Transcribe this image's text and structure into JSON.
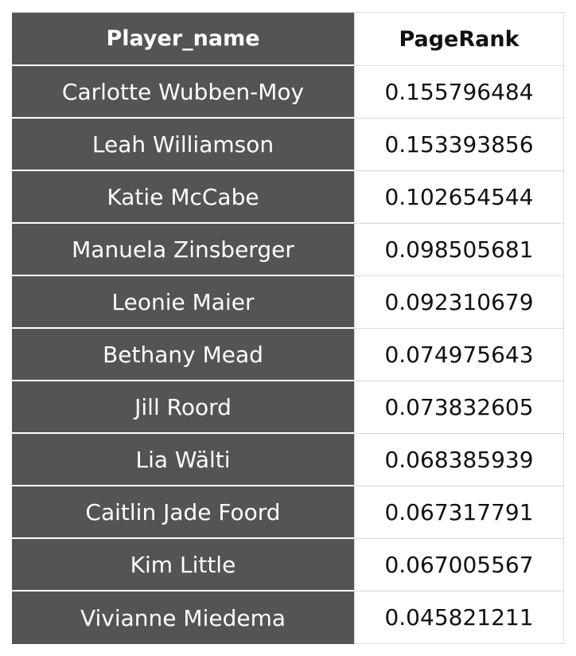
{
  "table": {
    "headers": [
      "Player_name",
      "PageRank"
    ],
    "rows": [
      [
        "Carlotte Wubben-Moy",
        "0.155796484"
      ],
      [
        "Leah Williamson",
        "0.153393856"
      ],
      [
        "Katie McCabe",
        "0.102654544"
      ],
      [
        "Manuela Zinsberger",
        "0.098505681"
      ],
      [
        "Leonie Maier",
        "0.092310679"
      ],
      [
        "Bethany Mead",
        "0.074975643"
      ],
      [
        "Jill Roord",
        "0.073832605"
      ],
      [
        "Lia Wälti",
        "0.068385939"
      ],
      [
        "Caitlin Jade Foord",
        "0.067317791"
      ],
      [
        "Kim Little",
        "0.067005567"
      ],
      [
        "Vivianne Miedema",
        "0.045821211"
      ]
    ]
  },
  "colors": {
    "name_column_bg": "#545454",
    "name_column_text": "#ffffff",
    "value_column_bg": "#ffffff",
    "value_column_text": "#111111",
    "grid_line": "#d9d9d9"
  }
}
